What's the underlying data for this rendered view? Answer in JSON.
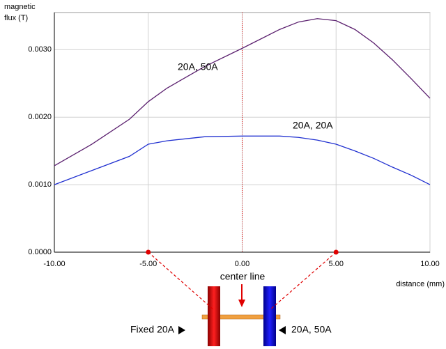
{
  "chart_data": {
    "type": "line",
    "y_label_lines": [
      "magnetic",
      "flux (T)"
    ],
    "x_label": "distance (mm)",
    "x": [
      -10,
      -8,
      -6,
      -5,
      -4,
      -2,
      0,
      2,
      3,
      4,
      5,
      6,
      7,
      8,
      9,
      10
    ],
    "series": [
      {
        "name": "20A, 50A",
        "color": "#5a1f6e",
        "values": [
          0.00128,
          0.0016,
          0.00197,
          0.00223,
          0.00243,
          0.00275,
          0.00302,
          0.0033,
          0.00341,
          0.00346,
          0.00343,
          0.0033,
          0.0031,
          0.00285,
          0.00257,
          0.00228
        ]
      },
      {
        "name": "20A, 20A",
        "color": "#1f2fd0",
        "values": [
          0.001,
          0.00121,
          0.00142,
          0.0016,
          0.00165,
          0.00171,
          0.00172,
          0.00172,
          0.0017,
          0.00166,
          0.0016,
          0.0015,
          0.00139,
          0.00126,
          0.00114,
          0.001
        ]
      }
    ],
    "xlim": [
      -10,
      10
    ],
    "ylim": [
      0,
      0.00355
    ],
    "xticks": [
      {
        "value": -10,
        "label": "-10.00"
      },
      {
        "value": -5,
        "label": "-5.00"
      },
      {
        "value": 0,
        "label": "0.00"
      },
      {
        "value": 5,
        "label": "5.00"
      },
      {
        "value": 10,
        "label": "10.00"
      }
    ],
    "yticks": [
      {
        "value": 0,
        "label": "0.0000"
      },
      {
        "value": 0.001,
        "label": "0.0010"
      },
      {
        "value": 0.002,
        "label": "0.0020"
      },
      {
        "value": 0.003,
        "label": "0.0030"
      }
    ],
    "grid": true,
    "coil_positions": [
      -5,
      5
    ],
    "diagram": {
      "center_label": "center line",
      "left_label": "Fixed  20A",
      "right_label": "20A, 50A"
    }
  }
}
